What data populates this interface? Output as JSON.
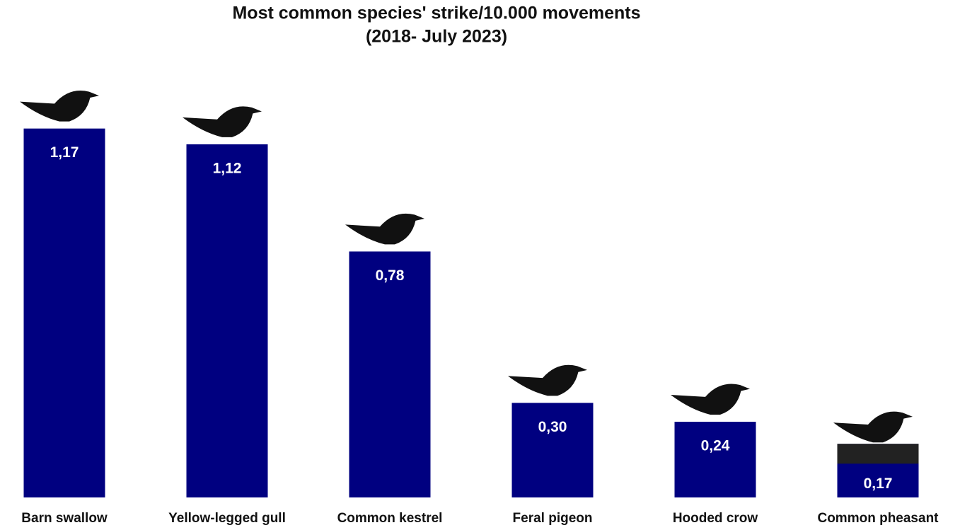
{
  "chart_data": {
    "type": "bar",
    "title": [
      "Most common species' strike/10.000 movements",
      "(2018- July 2023)"
    ],
    "categories": [
      "Barn swallow",
      "Yellow-legged gull",
      "Common kestrel",
      "Feral pigeon",
      "Hooded crow",
      "Common pheasant"
    ],
    "values": [
      1.17,
      1.12,
      0.78,
      0.3,
      0.24,
      0.17
    ],
    "value_labels": [
      "1,17",
      "1,12",
      "0,78",
      "0,30",
      "0,24",
      "0,17"
    ],
    "color": "#000080",
    "ylim": [
      0,
      1.25
    ]
  }
}
